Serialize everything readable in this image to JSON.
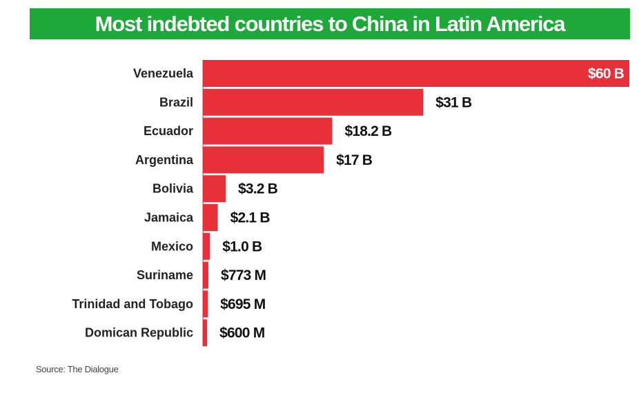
{
  "chart_data": {
    "type": "bar",
    "orientation": "horizontal",
    "title": "Most indebted countries to China in Latin America",
    "categories": [
      "Venezuela",
      "Brazil",
      "Ecuador",
      "Argentina",
      "Bolivia",
      "Jamaica",
      "Mexico",
      "Suriname",
      "Trinidad and Tobago",
      "Domican Republic"
    ],
    "values": [
      60,
      31,
      18.2,
      17,
      3.2,
      2.1,
      1.0,
      0.773,
      0.695,
      0.6
    ],
    "value_unit": "billion USD",
    "value_labels": [
      "$60 B",
      "$31 B",
      "$18.2 B",
      "$17 B",
      "$3.2 B",
      "$2.1 B",
      "$1.0 B",
      "$773 M",
      "$695 M",
      "$600 M"
    ],
    "xlim": [
      0,
      60
    ],
    "grid": false,
    "legend": "none",
    "bar_color": "#e8303a",
    "title_background": "#1fa83a",
    "source": "Source: The Dialogue"
  }
}
